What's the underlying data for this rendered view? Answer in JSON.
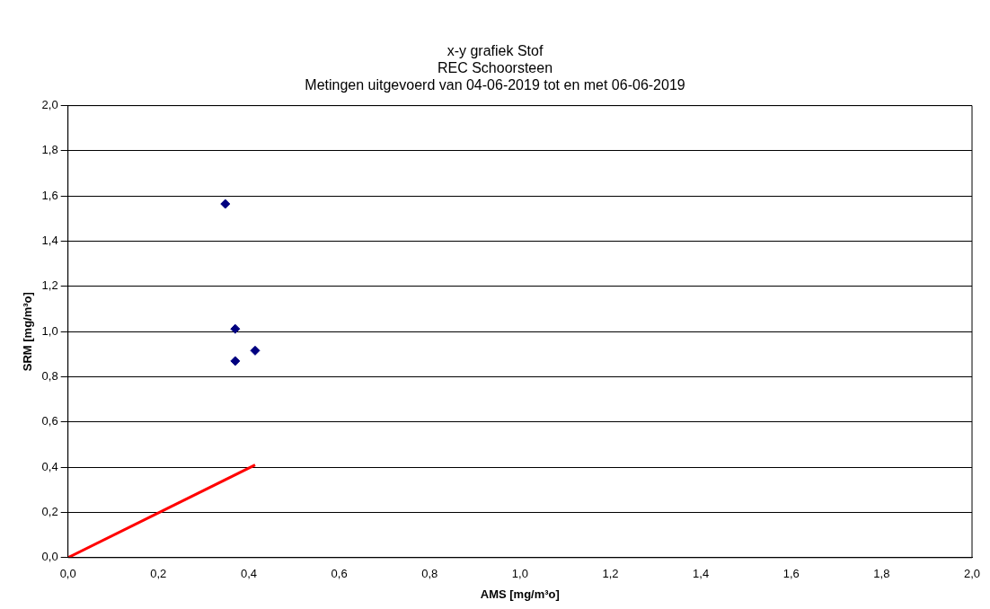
{
  "chart_data": {
    "type": "scatter",
    "title": "x-y grafiek Stof\nREC Schoorsteen\nMetingen uitgevoerd van 04-06-2019 tot en met 06-06-2019",
    "xlabel": "AMS [mg/m³o]",
    "ylabel": "SRM [mg/m³o]",
    "series": [
      {
        "color": "#000080",
        "x": [
          0.348,
          0.37,
          0.37,
          0.414
        ],
        "values": [
          1.565,
          1.012,
          0.87,
          0.916
        ]
      },
      {
        "type": "line",
        "color": "#ff0000",
        "x": [
          0,
          0.414
        ],
        "values": [
          0,
          0.41
        ],
        "marker": "none",
        "line_style": "solid"
      }
    ],
    "marker": "diamond",
    "grid": "y",
    "legend": false,
    "xlim": [
      0,
      2
    ],
    "ylim": [
      0,
      2
    ],
    "xticks": [
      {
        "value": 0,
        "label": "0,0"
      },
      {
        "value": 0.2,
        "label": "0,2"
      },
      {
        "value": 0.4,
        "label": "0,4"
      },
      {
        "value": 0.6,
        "label": "0,6"
      },
      {
        "value": 0.8,
        "label": "0,8"
      },
      {
        "value": 1,
        "label": "1,0"
      },
      {
        "value": 1.2,
        "label": "1,2"
      },
      {
        "value": 1.4,
        "label": "1,4"
      },
      {
        "value": 1.6,
        "label": "1,6"
      },
      {
        "value": 1.8,
        "label": "1,8"
      },
      {
        "value": 2,
        "label": "2,0"
      }
    ],
    "yticks": [
      {
        "value": 0,
        "label": "0,0"
      },
      {
        "value": 0.2,
        "label": "0,2"
      },
      {
        "value": 0.4,
        "label": "0,4"
      },
      {
        "value": 0.6,
        "label": "0,6"
      },
      {
        "value": 0.8,
        "label": "0,8"
      },
      {
        "value": 1,
        "label": "1,0"
      },
      {
        "value": 1.2,
        "label": "1,2"
      },
      {
        "value": 1.4,
        "label": "1,4"
      },
      {
        "value": 1.6,
        "label": "1,6"
      },
      {
        "value": 1.8,
        "label": "1,8"
      },
      {
        "value": 2,
        "label": "2,0"
      }
    ]
  }
}
